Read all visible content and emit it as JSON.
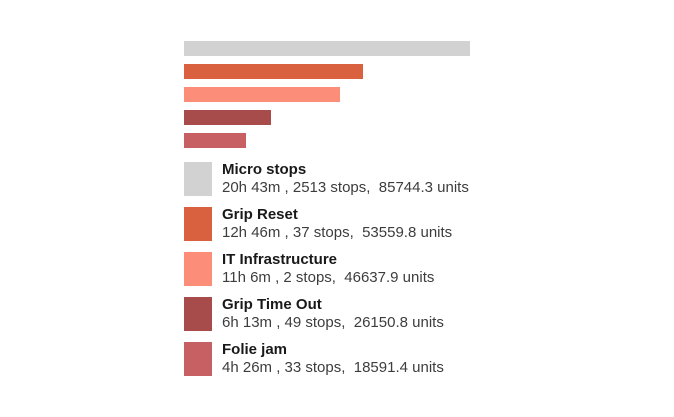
{
  "chart_data": {
    "type": "bar",
    "orientation": "horizontal",
    "title": "",
    "xlabel": "",
    "ylabel": "",
    "categories": [
      "Micro stops",
      "Grip Reset",
      "IT Infrastructure",
      "Grip Time Out",
      "Folie jam"
    ],
    "series": [
      {
        "name": "units",
        "values": [
          85744.3,
          53559.8,
          46637.9,
          26150.8,
          18591.4
        ]
      },
      {
        "name": "stops",
        "values": [
          2513,
          37,
          2,
          49,
          33
        ]
      },
      {
        "name": "duration",
        "values": [
          "20h 43m",
          "12h 46m",
          "11h 6m",
          "6h 13m",
          "4h 26m"
        ]
      }
    ],
    "bar_colors": [
      "#d2d2d2",
      "#da6140",
      "#fc8d78",
      "#a84b4b",
      "#c66062"
    ],
    "xlim": [
      0,
      85744.3
    ],
    "grid": false,
    "axes_visible": false,
    "legend_position": "bottom-left"
  },
  "legend": {
    "items": [
      {
        "label": "Micro stops",
        "detail": "20h 43m , 2513 stops,  85744.3 units",
        "color": "#d2d2d2"
      },
      {
        "label": "Grip Reset",
        "detail": "12h 46m , 37 stops,  53559.8 units",
        "color": "#da6140"
      },
      {
        "label": "IT Infrastructure",
        "detail": "11h 6m , 2 stops,  46637.9 units",
        "color": "#fc8d78"
      },
      {
        "label": "Grip Time Out",
        "detail": "6h 13m , 49 stops,  26150.8 units",
        "color": "#a84b4b"
      },
      {
        "label": "Folie jam",
        "detail": "4h 26m , 33 stops,  18591.4 units",
        "color": "#c66062"
      }
    ]
  }
}
